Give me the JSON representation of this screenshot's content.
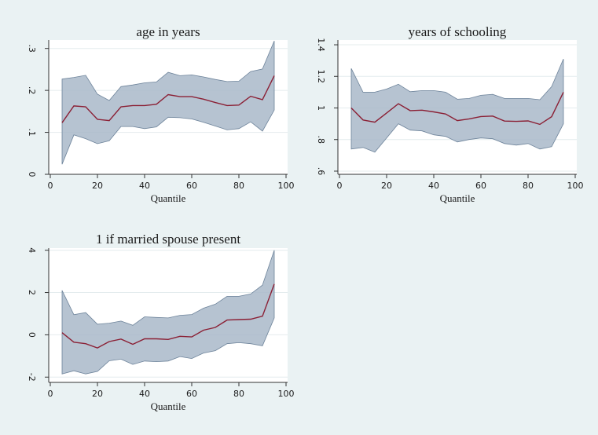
{
  "colors": {
    "background": "#eaf2f3",
    "plot_background": "#ffffff",
    "band_fill": "#a9b9c9",
    "band_edge": "#6d839a",
    "line": "#8b2035"
  },
  "chart_data": [
    {
      "type": "area",
      "title": "age in years",
      "xlabel": "Quantile",
      "ylabel": "",
      "xlim": [
        0,
        100
      ],
      "ylim": [
        0,
        0.32
      ],
      "x_ticks": [
        0,
        20,
        40,
        60,
        80,
        100
      ],
      "y_ticks": [
        0,
        0.1,
        0.2,
        0.3
      ],
      "y_tick_labels": [
        "0",
        ".1",
        ".2",
        ".3"
      ],
      "grid": true,
      "x": [
        5,
        10,
        15,
        20,
        25,
        30,
        35,
        40,
        45,
        50,
        55,
        60,
        65,
        70,
        75,
        80,
        85,
        90,
        95
      ],
      "series": [
        {
          "values": [
            0.123,
            0.163,
            0.161,
            0.131,
            0.128,
            0.161,
            0.164,
            0.164,
            0.167,
            0.19,
            0.185,
            0.185,
            0.179,
            0.171,
            0.164,
            0.165,
            0.186,
            0.178,
            0.235
          ]
        }
      ],
      "band_lower": [
        0.024,
        0.094,
        0.085,
        0.073,
        0.08,
        0.114,
        0.114,
        0.109,
        0.113,
        0.136,
        0.135,
        0.132,
        0.124,
        0.115,
        0.106,
        0.109,
        0.125,
        0.103,
        0.153
      ],
      "band_upper": [
        0.227,
        0.231,
        0.236,
        0.191,
        0.176,
        0.209,
        0.213,
        0.218,
        0.22,
        0.243,
        0.235,
        0.237,
        0.232,
        0.226,
        0.221,
        0.222,
        0.245,
        0.251,
        0.318
      ]
    },
    {
      "type": "area",
      "title": "years of schooling",
      "xlabel": "Quantile",
      "ylabel": "",
      "xlim": [
        0,
        100
      ],
      "ylim": [
        0.58,
        1.43
      ],
      "x_ticks": [
        0,
        20,
        40,
        60,
        80,
        100
      ],
      "y_ticks": [
        0.6,
        0.8,
        1,
        1.2,
        1.4
      ],
      "y_tick_labels": [
        ".6",
        ".8",
        "1",
        "1.2",
        "1.4"
      ],
      "grid": true,
      "x": [
        5,
        10,
        15,
        20,
        25,
        30,
        35,
        40,
        45,
        50,
        55,
        60,
        65,
        70,
        75,
        80,
        85,
        90,
        95
      ],
      "series": [
        {
          "values": [
            1.0,
            0.924,
            0.91,
            0.968,
            1.027,
            0.983,
            0.986,
            0.975,
            0.962,
            0.92,
            0.931,
            0.946,
            0.949,
            0.917,
            0.915,
            0.918,
            0.896,
            0.945,
            1.1
          ]
        }
      ],
      "band_lower": [
        0.74,
        0.75,
        0.72,
        0.81,
        0.9,
        0.86,
        0.855,
        0.83,
        0.82,
        0.785,
        0.8,
        0.81,
        0.805,
        0.775,
        0.765,
        0.775,
        0.74,
        0.755,
        0.9
      ],
      "band_upper": [
        1.25,
        1.1,
        1.1,
        1.12,
        1.15,
        1.103,
        1.11,
        1.11,
        1.1,
        1.055,
        1.06,
        1.08,
        1.086,
        1.06,
        1.06,
        1.06,
        1.052,
        1.135,
        1.31
      ]
    },
    {
      "type": "area",
      "title": "1 if married spouse present",
      "xlabel": "Quantile",
      "ylabel": "",
      "xlim": [
        0,
        100
      ],
      "ylim": [
        -2.25,
        4.1
      ],
      "x_ticks": [
        0,
        20,
        40,
        60,
        80,
        100
      ],
      "y_ticks": [
        -2,
        0,
        2,
        4
      ],
      "y_tick_labels": [
        "-2",
        "0",
        "2",
        "4"
      ],
      "grid": true,
      "x": [
        5,
        10,
        15,
        20,
        25,
        30,
        35,
        40,
        45,
        50,
        55,
        60,
        65,
        70,
        75,
        80,
        85,
        90,
        95
      ],
      "series": [
        {
          "values": [
            0.1,
            -0.35,
            -0.42,
            -0.62,
            -0.32,
            -0.2,
            -0.45,
            -0.19,
            -0.19,
            -0.22,
            -0.07,
            -0.1,
            0.22,
            0.35,
            0.7,
            0.72,
            0.74,
            0.88,
            2.4
          ]
        }
      ],
      "band_lower": [
        -1.85,
        -1.7,
        -1.85,
        -1.73,
        -1.23,
        -1.15,
        -1.4,
        -1.24,
        -1.27,
        -1.24,
        -1.03,
        -1.12,
        -0.86,
        -0.75,
        -0.42,
        -0.37,
        -0.42,
        -0.52,
        0.8
      ],
      "band_upper": [
        2.1,
        0.95,
        1.05,
        0.5,
        0.55,
        0.65,
        0.45,
        0.85,
        0.82,
        0.8,
        0.92,
        0.96,
        1.26,
        1.45,
        1.82,
        1.82,
        1.93,
        2.35,
        4.0
      ]
    }
  ]
}
